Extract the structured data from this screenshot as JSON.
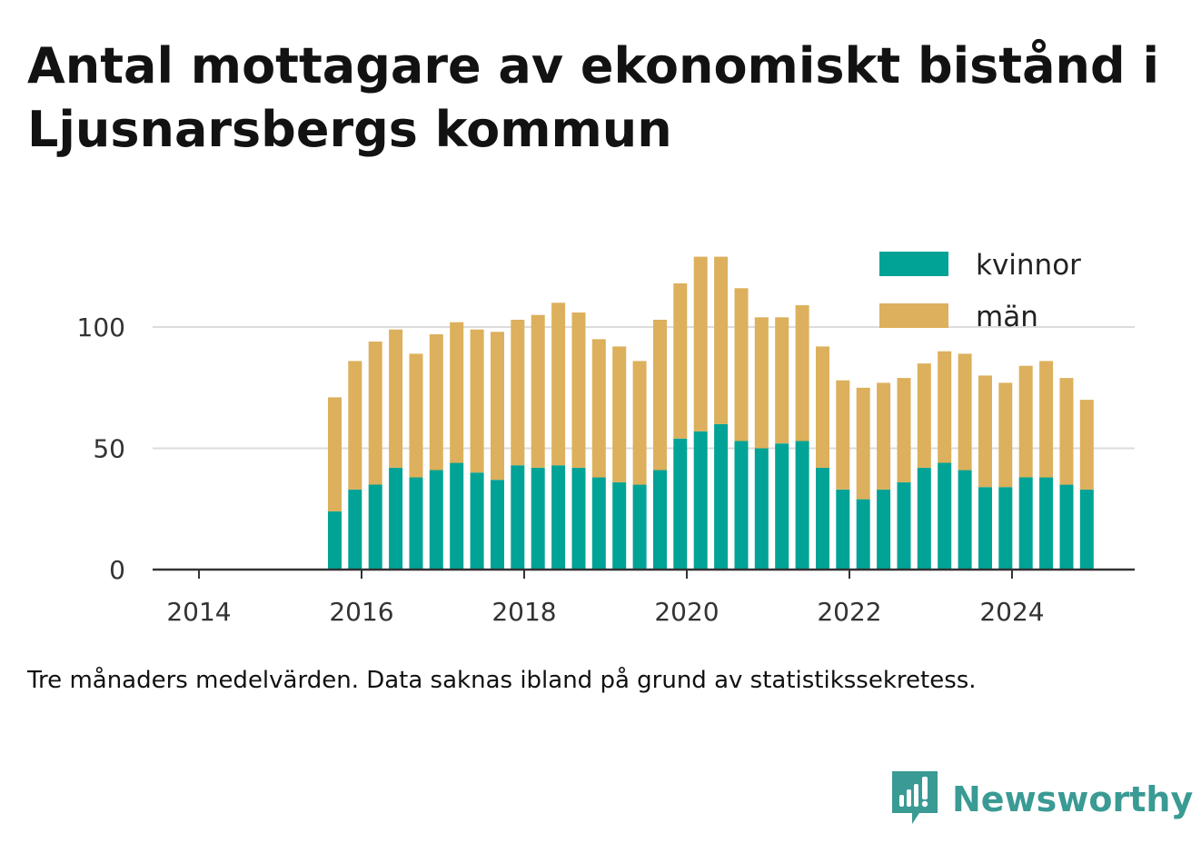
{
  "title": "Antal mottagare av ekonomiskt bistånd i Ljusnarsbergs kommun",
  "footnote": "Tre månaders medelvärden. Data saknas ibland på grund av statistikssekretess.",
  "brand": {
    "name": "Newsworthy",
    "icon": "newsworthy-logo-icon",
    "color": "#3a9a94"
  },
  "chart_data": {
    "type": "bar",
    "stacked": true,
    "x_ticks": [
      "2014",
      "2016",
      "2018",
      "2020",
      "2022",
      "2024"
    ],
    "y_ticks": [
      "0",
      "50",
      "100"
    ],
    "ylim": [
      0,
      130
    ],
    "xlim": [
      2013.5,
      2025.5
    ],
    "grid": "horizontal",
    "legend_position": "top-right",
    "x": [
      2015.67,
      2015.92,
      2016.17,
      2016.42,
      2016.67,
      2016.92,
      2017.17,
      2017.42,
      2017.67,
      2017.92,
      2018.17,
      2018.42,
      2018.67,
      2018.92,
      2019.17,
      2019.42,
      2019.67,
      2019.92,
      2020.17,
      2020.42,
      2020.67,
      2020.92,
      2021.17,
      2021.42,
      2021.67,
      2021.92,
      2022.17,
      2022.42,
      2022.67,
      2022.92,
      2023.17,
      2023.42,
      2023.67,
      2023.92,
      2024.17,
      2024.42,
      2024.67,
      2024.92
    ],
    "series": [
      {
        "name": "kvinnor",
        "color": "#00a396",
        "values": [
          24,
          33,
          35,
          42,
          38,
          41,
          44,
          40,
          37,
          43,
          42,
          43,
          42,
          38,
          36,
          35,
          41,
          54,
          57,
          60,
          53,
          50,
          52,
          53,
          42,
          33,
          29,
          33,
          36,
          42,
          44,
          41,
          34,
          34,
          38,
          38,
          35,
          33
        ]
      },
      {
        "name": "män",
        "color": "#dcb05c",
        "values": [
          47,
          53,
          59,
          57,
          51,
          56,
          58,
          59,
          61,
          60,
          63,
          67,
          64,
          57,
          56,
          51,
          62,
          64,
          72,
          69,
          63,
          54,
          52,
          56,
          50,
          45,
          46,
          44,
          43,
          43,
          46,
          48,
          46,
          43,
          46,
          48,
          44,
          37
        ]
      }
    ]
  }
}
